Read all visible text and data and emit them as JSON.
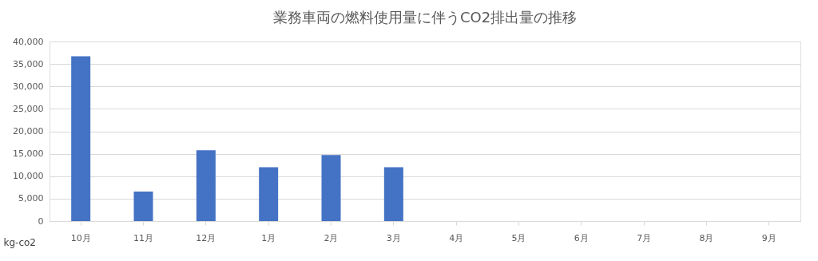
{
  "chart_data": {
    "type": "bar",
    "title": "業務車両の燃料使用量に伴うCO2排出量の推移",
    "ylabel": "kg-co2",
    "categories": [
      "10月",
      "11月",
      "12月",
      "1月",
      "2月",
      "3月",
      "4月",
      "5月",
      "6月",
      "7月",
      "8月",
      "9月"
    ],
    "values": [
      36700,
      6600,
      15800,
      12000,
      14700,
      12000,
      null,
      null,
      null,
      null,
      null,
      null
    ],
    "color": "#4472c4",
    "ylim": [
      0,
      40000
    ],
    "yticks": [
      0,
      {
        "value": 5000,
        "label": "5,000"
      },
      {
        "value": 10000,
        "label": "10,000"
      },
      {
        "value": 15000,
        "label": "15,000"
      },
      {
        "value": 20000,
        "label": "20,000"
      },
      {
        "value": 25000,
        "label": "25,000"
      },
      {
        "value": 30000,
        "label": "30,000"
      },
      {
        "value": 35000,
        "label": "35,000"
      },
      {
        "value": 40000,
        "label": "40,000"
      }
    ],
    "grid": "y"
  }
}
